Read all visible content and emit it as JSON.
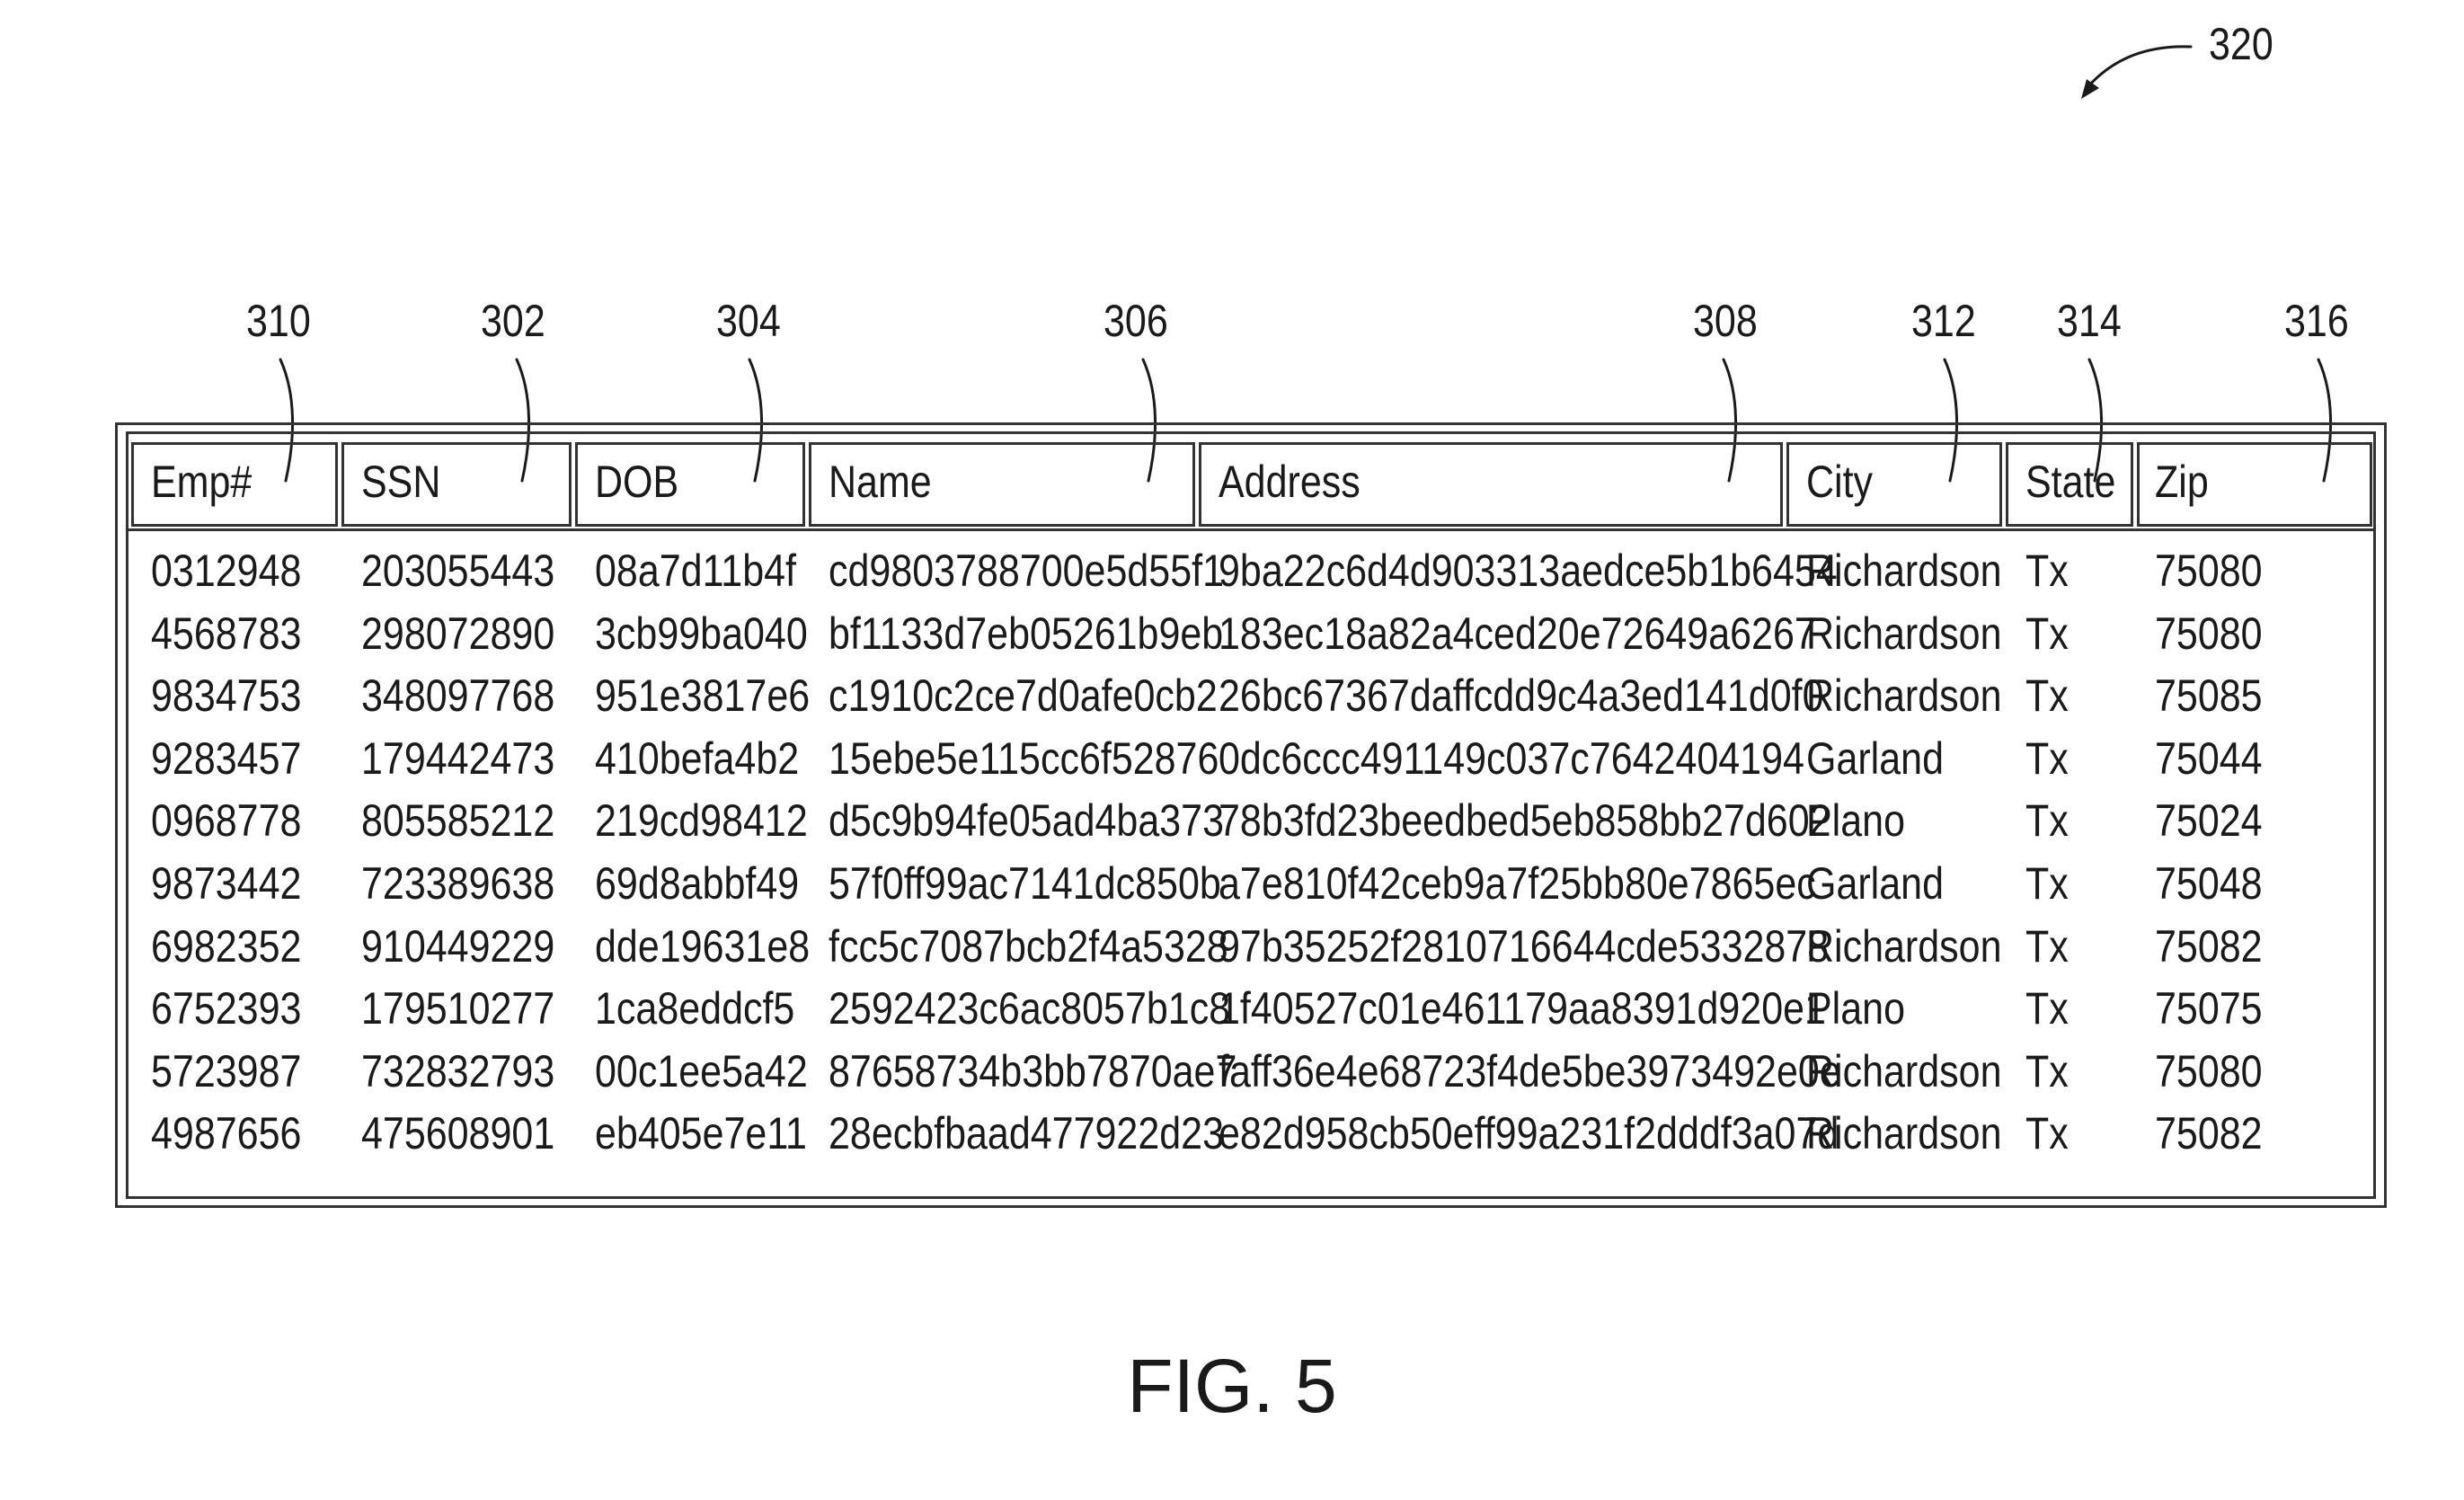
{
  "figure_ref": "320",
  "figure_caption": "FIG. 5",
  "columns": [
    {
      "ref": "310",
      "header": "Emp#"
    },
    {
      "ref": "302",
      "header": "SSN"
    },
    {
      "ref": "304",
      "header": "DOB"
    },
    {
      "ref": "306",
      "header": "Name"
    },
    {
      "ref": "308",
      "header": "Address"
    },
    {
      "ref": "312",
      "header": "City"
    },
    {
      "ref": "314",
      "header": "State"
    },
    {
      "ref": "316",
      "header": "Zip"
    }
  ],
  "rows": [
    [
      "0312948",
      "203055443",
      "08a7d11b4f",
      "cd9803788700e5d55f1",
      "9ba22c6d4d903313aedce5b1b6454",
      "Richardson",
      "Tx",
      "75080"
    ],
    [
      "4568783",
      "298072890",
      "3cb99ba040",
      "bf1133d7eb05261b9eb",
      "183ec18a82a4ced20e72649a6267",
      "Richardson",
      "Tx",
      "75080"
    ],
    [
      "9834753",
      "348097768",
      "951e3817e6",
      "c1910c2ce7d0afe0cb2",
      "26bc67367daffcdd9c4a3ed141d0f0",
      "Richardson",
      "Tx",
      "75085"
    ],
    [
      "9283457",
      "179442473",
      "410befa4b2",
      "15ebe5e115cc6f52876",
      "0dc6ccc491149c037c7642404194",
      "Garland",
      "Tx",
      "75044"
    ],
    [
      "0968778",
      "805585212",
      "219cd98412",
      "d5c9b94fe05ad4ba373",
      "78b3fd23beedbed5eb858bb27d602",
      "Plano",
      "Tx",
      "75024"
    ],
    [
      "9873442",
      "723389638",
      "69d8abbf49",
      "57f0ff99ac7141dc850b",
      "a7e810f42ceb9a7f25bb80e7865ec",
      "Garland",
      "Tx",
      "75048"
    ],
    [
      "6982352",
      "910449229",
      "dde19631e8",
      "fcc5c7087bcb2f4a5328",
      "97b35252f2810716644cde5332878",
      "Richardson",
      "Tx",
      "75082"
    ],
    [
      "6752393",
      "179510277",
      "1ca8eddcf5",
      "2592423c6ac8057b1c8",
      "1f40527c01e461179aa8391d920e1",
      "Plano",
      "Tx",
      "75075"
    ],
    [
      "5723987",
      "732832793",
      "00c1ee5a42",
      "87658734b3bb7870ae7",
      "faff36e4e68723f4de5be3973492e0e",
      "Richardson",
      "Tx",
      "75080"
    ],
    [
      "4987656",
      "475608901",
      "eb405e7e11",
      "28ecbfbaad477922d23",
      "e82d958cb50eff99a231f2dddf3a07d",
      "Richardson",
      "Tx",
      "75082"
    ]
  ]
}
